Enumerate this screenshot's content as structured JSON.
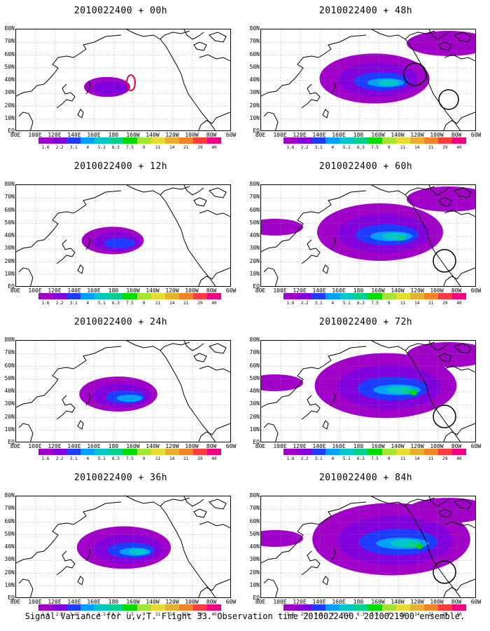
{
  "caption": "Signal Variance for u,v,T. Flight 33. Observation time 2010022400. 2010021900 ensemble.",
  "lat_labels": [
    "80N",
    "70N",
    "60N",
    "50N",
    "40N",
    "30N",
    "20N",
    "10N",
    "EQ"
  ],
  "lon_labels": [
    "80E",
    "100E",
    "120E",
    "140E",
    "160E",
    "180",
    "160W",
    "140W",
    "120W",
    "100W",
    "80W",
    "60W"
  ],
  "colorbar": {
    "levels": [
      "1.6",
      "2.2",
      "3.1",
      "4",
      "5.1",
      "6.3",
      "7.5",
      "9",
      "11",
      "14",
      "21",
      "29",
      "40"
    ],
    "colors": [
      "#a000c8",
      "#8200dc",
      "#1e3cff",
      "#00a0ff",
      "#00c8c8",
      "#00d28c",
      "#00dc00",
      "#a0e632",
      "#e6dc32",
      "#e6af2d",
      "#f08228",
      "#fa3c3c",
      "#f00082"
    ]
  },
  "panels": [
    {
      "id": "p00",
      "title": "2010022400 + 00h",
      "level": 0,
      "circle": "red"
    },
    {
      "id": "p12",
      "title": "2010022400 + 12h",
      "level": 1,
      "circle": ""
    },
    {
      "id": "p24",
      "title": "2010022400 + 24h",
      "level": 2,
      "circle": ""
    },
    {
      "id": "p36",
      "title": "2010022400 + 36h",
      "level": 3,
      "circle": ""
    },
    {
      "id": "p48",
      "title": "2010022400 + 48h",
      "level": 4,
      "circle": "black"
    },
    {
      "id": "p60",
      "title": "2010022400 + 60h",
      "level": 5,
      "circle": "black"
    },
    {
      "id": "p72",
      "title": "2010022400 + 72h",
      "level": 6,
      "circle": "black"
    },
    {
      "id": "p84",
      "title": "2010022400 + 84h",
      "level": 7,
      "circle": "black"
    }
  ]
}
